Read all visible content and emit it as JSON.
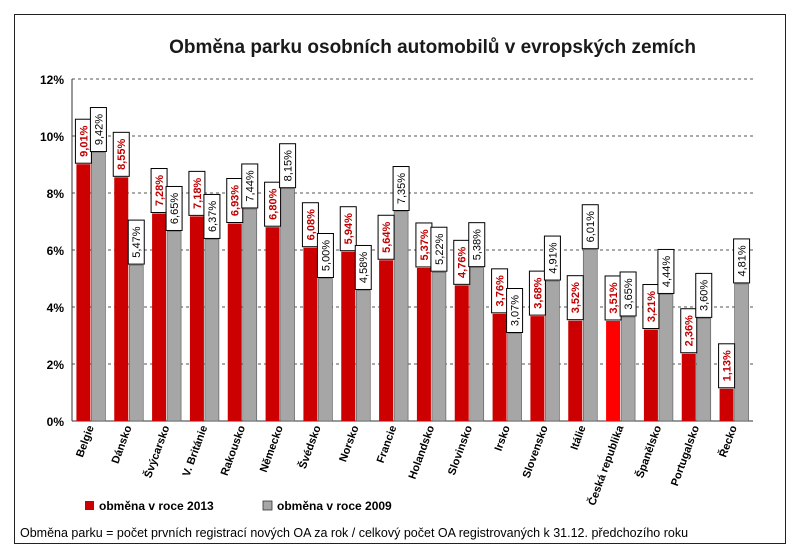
{
  "chart_data": {
    "type": "bar",
    "title": "Obměna parku osobních automobilů v evropských zemích",
    "xlabel": "",
    "ylabel": "",
    "ylim": [
      0,
      12
    ],
    "yticks": [
      "0%",
      "2%",
      "4%",
      "6%",
      "8%",
      "10%",
      "12%"
    ],
    "grid": true,
    "legend_position": "bottom-left",
    "categories": [
      "Belgie",
      "Dánsko",
      "Švýcarsko",
      "V. Británie",
      "Rakousko",
      "Německo",
      "Švédsko",
      "Norsko",
      "Francie",
      "Holandsko",
      "Slovinsko",
      "Irsko",
      "Slovensko",
      "Itálie",
      "Česká republika",
      "Španělsko",
      "Portugalsko",
      "Řecko"
    ],
    "series": [
      {
        "name": "obměna v roce 2013",
        "color": "#cc0000",
        "values": [
          9.01,
          8.55,
          7.28,
          7.18,
          6.93,
          6.8,
          6.08,
          5.94,
          5.64,
          5.37,
          4.76,
          3.76,
          3.68,
          3.52,
          3.51,
          3.21,
          2.36,
          1.13
        ],
        "labels": [
          "9,01%",
          "8,55%",
          "7,28%",
          "7,18%",
          "6,93%",
          "6,80%",
          "6,08%",
          "5,94%",
          "5,64%",
          "5,37%",
          "4,76%",
          "3,76%",
          "3,68%",
          "3,52%",
          "3,51%",
          "3,21%",
          "2,36%",
          "1,13%"
        ]
      },
      {
        "name": "obměna  v roce 2009",
        "color": "#a6a6a6",
        "values": [
          9.42,
          5.47,
          6.65,
          6.37,
          7.44,
          8.15,
          5.0,
          4.58,
          7.35,
          5.22,
          5.38,
          3.07,
          4.91,
          6.01,
          3.65,
          4.44,
          3.6,
          4.81
        ],
        "labels": [
          "9,42%",
          "5,47%",
          "6,65%",
          "6,37%",
          "7,44%",
          "8,15%",
          "5,00%",
          "4,58%",
          "7,35%",
          "5,22%",
          "5,38%",
          "3,07%",
          "4,91%",
          "6,01%",
          "3,65%",
          "4,44%",
          "3,60%",
          "4,81%"
        ]
      }
    ],
    "highlight": {
      "category": "Česká republika",
      "color": "#ff0000"
    }
  },
  "footnote": "Obměna parku = počet prvních registrací nových OA za rok / celkový počet OA registrovaných k 31.12. předchozího roku"
}
